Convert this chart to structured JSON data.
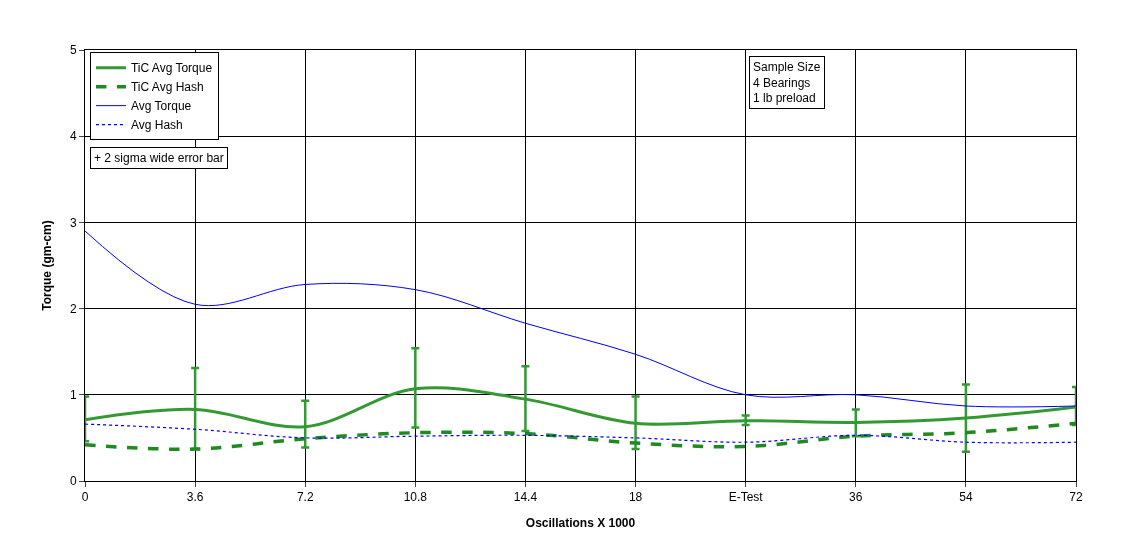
{
  "chart_data": {
    "type": "line",
    "xlabel": "Oscillations X 1000",
    "ylabel": "Torque (gm-cm)",
    "categories": [
      "0",
      "3.6",
      "7.2",
      "10.8",
      "14.4",
      "18",
      "E-Test",
      "36",
      "54",
      "72"
    ],
    "series": [
      {
        "name": "TiC Avg Torque",
        "color": "#339933",
        "line_style": "solid",
        "values": [
          0.71,
          0.83,
          0.63,
          1.07,
          0.95,
          0.67,
          0.7,
          0.68,
          0.73,
          0.86
        ],
        "errors": [
          [
            0.46,
            0.98
          ],
          [
            0.37,
            1.31
          ],
          [
            0.39,
            0.93
          ],
          [
            0.62,
            1.54
          ],
          [
            0.58,
            1.33
          ],
          [
            0.37,
            0.98
          ],
          [
            0.65,
            0.76
          ],
          [
            0.52,
            0.83
          ],
          [
            0.34,
            1.12
          ],
          [
            0.65,
            1.09
          ]
        ]
      },
      {
        "name": "TiC Avg Hash",
        "color": "#1f8a1f",
        "line_style": "dashed",
        "values": [
          0.42,
          0.37,
          0.49,
          0.56,
          0.55,
          0.44,
          0.4,
          0.52,
          0.56,
          0.67
        ]
      },
      {
        "name": "Avg Torque",
        "color": "#0000ff",
        "line_style": "solid",
        "values": [
          2.9,
          2.05,
          2.28,
          2.22,
          1.83,
          1.47,
          1.0,
          1.0,
          0.87,
          0.87
        ]
      },
      {
        "name": "Avg Hash",
        "color": "#0000ff",
        "line_style": "dotted",
        "values": [
          0.66,
          0.6,
          0.5,
          0.52,
          0.53,
          0.5,
          0.45,
          0.53,
          0.45,
          0.45
        ]
      }
    ],
    "ylim": [
      0,
      5
    ],
    "yticks": [
      0,
      1,
      2,
      3,
      4,
      5
    ],
    "grid": true,
    "legend": "top left",
    "marker": "none",
    "annotations": [
      "+ 2 sigma wide error bar",
      "Sample Size\n4 Bearings\n1 lb preload"
    ]
  }
}
